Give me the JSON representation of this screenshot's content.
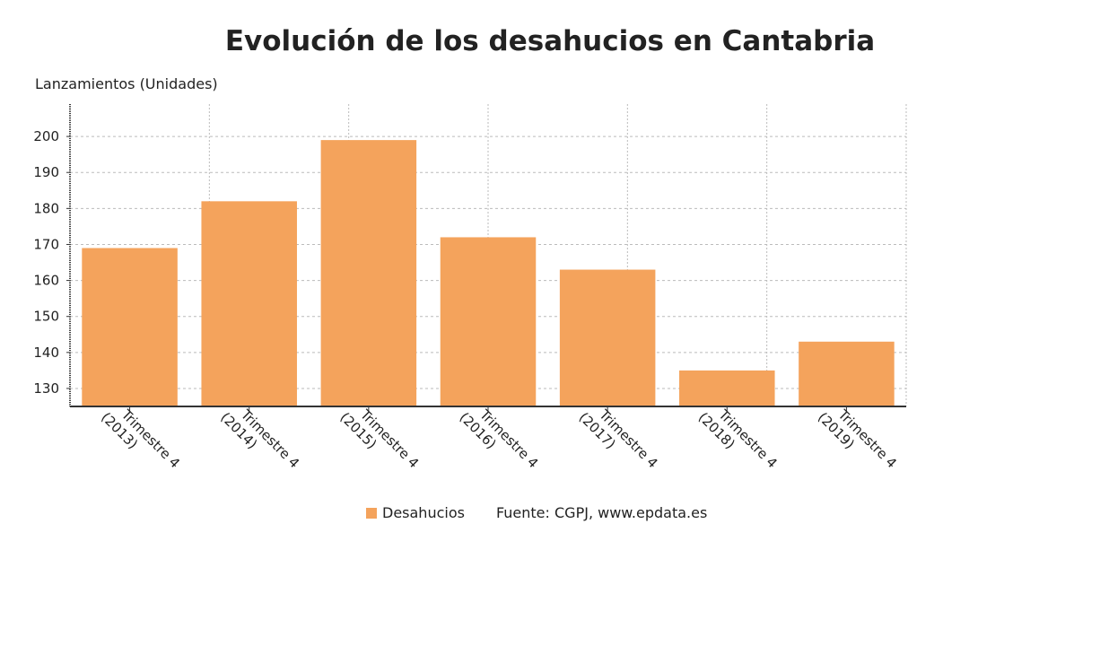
{
  "chart_data": {
    "type": "bar",
    "title": "Evolución de los desahucios en Cantabria",
    "ylabel": "Lanzamientos (Unidades)",
    "xlabel": "",
    "categories": [
      [
        "Trimestre 4",
        "(2013)"
      ],
      [
        "Trimestre 4",
        "(2014)"
      ],
      [
        "Trimestre 4",
        "(2015)"
      ],
      [
        "Trimestre 4",
        "(2016)"
      ],
      [
        "Trimestre 4",
        "(2017)"
      ],
      [
        "Trimestre 4",
        "(2018)"
      ],
      [
        "Trimestre 4",
        "(2019)"
      ]
    ],
    "series": [
      {
        "name": "Desahucios",
        "values": [
          169,
          182,
          199,
          172,
          163,
          135,
          143
        ],
        "color": "#f4a35c"
      }
    ],
    "ylim": [
      125,
      209
    ],
    "yticks": [
      130,
      140,
      150,
      160,
      170,
      180,
      190,
      200
    ],
    "grid": true,
    "legend_placement": "bottom",
    "source": "Fuente: CGPJ, www.epdata.es"
  }
}
